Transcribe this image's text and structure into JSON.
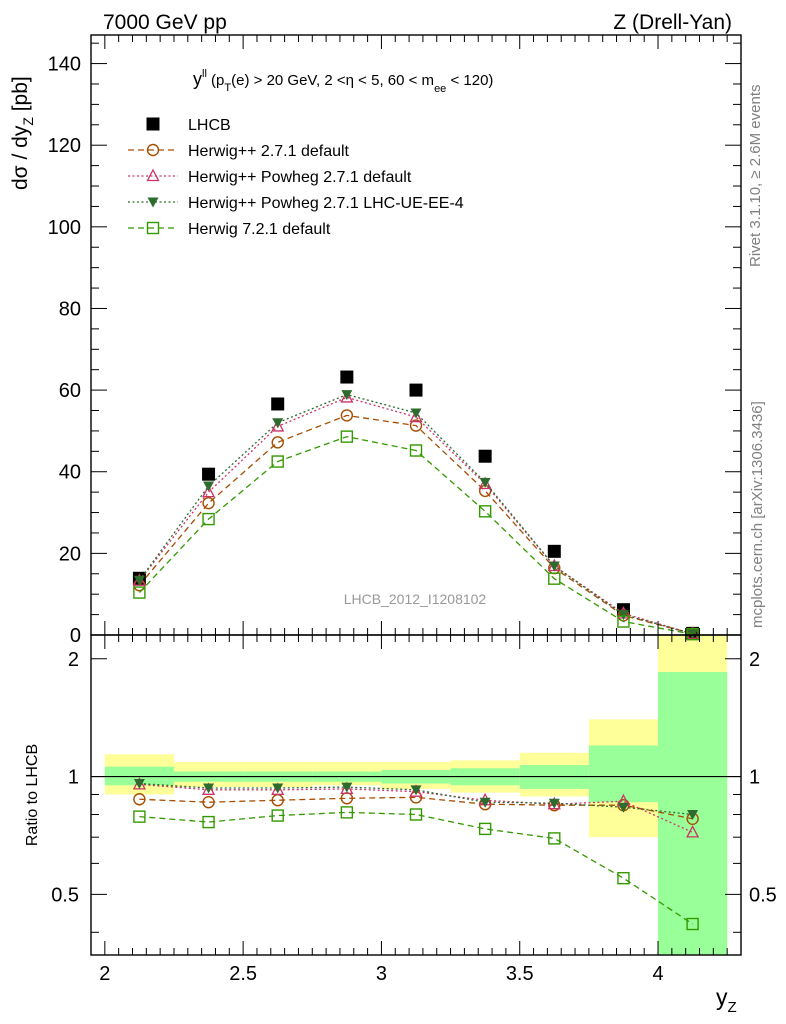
{
  "header": {
    "left": "7000 GeV pp",
    "right": "Z (Drell-Yan)"
  },
  "side_texts": {
    "rivet": "Rivet 3.1.10, ≥ 2.6M events",
    "mcplots": "mcplots.cern.ch [arXiv:1306.3436]"
  },
  "watermark": "LHCB_2012_I1208102",
  "cut_label": {
    "y": "y",
    "y_sup": "ll",
    "p": " (p",
    "p_sub": "T",
    "mid": "(e) > 20 GeV, 2 <η < 5, 60 < m",
    "m_sub": "ee",
    "end": " < 120)"
  },
  "y_title": {
    "main": "dσ / dy",
    "sub": "Z",
    "unit": " [pb]"
  },
  "ratio_ylabel": "Ratio to LHCB",
  "x_title": {
    "main": "y",
    "sub": "Z"
  },
  "chart_data": [
    {
      "type": "scatter",
      "panel": "main",
      "xlim": [
        1.95,
        4.3
      ],
      "ylim": [
        0,
        147
      ],
      "x_ticks": [
        "2",
        "2.5",
        "3",
        "3.5",
        "4"
      ],
      "y_ticks": [
        "0",
        "20",
        "40",
        "60",
        "80",
        "100",
        "120",
        "140"
      ],
      "x": [
        2.125,
        2.375,
        2.625,
        2.875,
        3.125,
        3.375,
        3.625,
        3.875,
        4.125
      ],
      "series": [
        {
          "name": "LHCB",
          "color": "#000000",
          "marker": "square-filled",
          "line": "none",
          "values": [
            13.9,
            39.4,
            56.6,
            63.2,
            60.0,
            43.8,
            20.5,
            6.2,
            0.4
          ]
        },
        {
          "name": "Herwig++ 2.7.1 default",
          "color": "#a64d00",
          "marker": "circle-open",
          "line": "dashed",
          "values": [
            12.2,
            32.3,
            47.2,
            53.8,
            51.3,
            35.3,
            16.4,
            4.8,
            0.3
          ]
        },
        {
          "name": "Herwig++ Powheg 2.7.1 default",
          "color": "#cc3366",
          "marker": "triangle-open",
          "line": "dotted",
          "values": [
            13.3,
            35.0,
            51.1,
            58.2,
            53.4,
            37.0,
            16.9,
            5.3,
            0.3
          ]
        },
        {
          "name": "Herwig++ Powheg 2.7.1 LHC-UE-EE-4",
          "color": "#2e6b2e",
          "marker": "triangle-down-filled",
          "line": "dotted",
          "values": [
            13.4,
            36.5,
            52.0,
            58.9,
            54.4,
            37.4,
            16.9,
            5.0,
            0.3
          ]
        },
        {
          "name": "Herwig 7.2.1 default",
          "color": "#339900",
          "marker": "square-open",
          "line": "dashed",
          "values": [
            10.4,
            28.4,
            42.5,
            48.6,
            45.2,
            30.3,
            13.8,
            3.3,
            0.2
          ]
        }
      ]
    },
    {
      "type": "scatter",
      "panel": "ratio",
      "ylabel": "Ratio to LHCB",
      "xlabel": "y_Z",
      "xlim": [
        1.95,
        4.3
      ],
      "ylim": [
        0.35,
        2.3
      ],
      "scale": "log",
      "y_ticks": [
        "0.5",
        "1",
        "2"
      ],
      "x": [
        2.125,
        2.375,
        2.625,
        2.875,
        3.125,
        3.375,
        3.625,
        3.875,
        4.125
      ],
      "bins": [
        [
          2.0,
          2.25
        ],
        [
          2.25,
          2.5
        ],
        [
          2.5,
          2.75
        ],
        [
          2.75,
          3.0
        ],
        [
          3.0,
          3.25
        ],
        [
          3.25,
          3.5
        ],
        [
          3.5,
          3.75
        ],
        [
          3.75,
          4.0
        ],
        [
          4.0,
          4.25
        ]
      ],
      "band_inner": {
        "color": "#99ff99",
        "lo": [
          0.95,
          0.97,
          0.97,
          0.97,
          0.96,
          0.95,
          0.93,
          0.86,
          0.35
        ],
        "hi": [
          1.06,
          1.03,
          1.03,
          1.03,
          1.04,
          1.05,
          1.07,
          1.2,
          1.85
        ]
      },
      "band_outer": {
        "color": "#ffff99",
        "lo": [
          0.9,
          0.94,
          0.94,
          0.95,
          0.93,
          0.91,
          0.89,
          0.7,
          0.35
        ],
        "hi": [
          1.14,
          1.09,
          1.09,
          1.09,
          1.09,
          1.1,
          1.15,
          1.4,
          2.3
        ]
      },
      "series": [
        {
          "name": "Herwig++ 2.7.1 default",
          "color": "#a64d00",
          "marker": "circle-open",
          "line": "dashed",
          "values": [
            0.875,
            0.86,
            0.87,
            0.88,
            0.885,
            0.85,
            0.845,
            0.845,
            0.78
          ]
        },
        {
          "name": "Herwig++ Powheg 2.7.1 default",
          "color": "#cc3366",
          "marker": "triangle-open",
          "line": "dotted",
          "values": [
            0.955,
            0.925,
            0.925,
            0.93,
            0.915,
            0.87,
            0.85,
            0.865,
            0.72
          ]
        },
        {
          "name": "Herwig++ Powheg 2.7.1 LHC-UE-EE-4",
          "color": "#2e6b2e",
          "marker": "triangle-down-filled",
          "line": "dotted",
          "values": [
            0.96,
            0.935,
            0.935,
            0.94,
            0.925,
            0.86,
            0.855,
            0.835,
            0.8
          ]
        },
        {
          "name": "Herwig 7.2.1 default",
          "color": "#339900",
          "marker": "square-open",
          "line": "dashed",
          "values": [
            0.79,
            0.765,
            0.795,
            0.81,
            0.8,
            0.735,
            0.695,
            0.55,
            0.42
          ]
        }
      ]
    }
  ]
}
